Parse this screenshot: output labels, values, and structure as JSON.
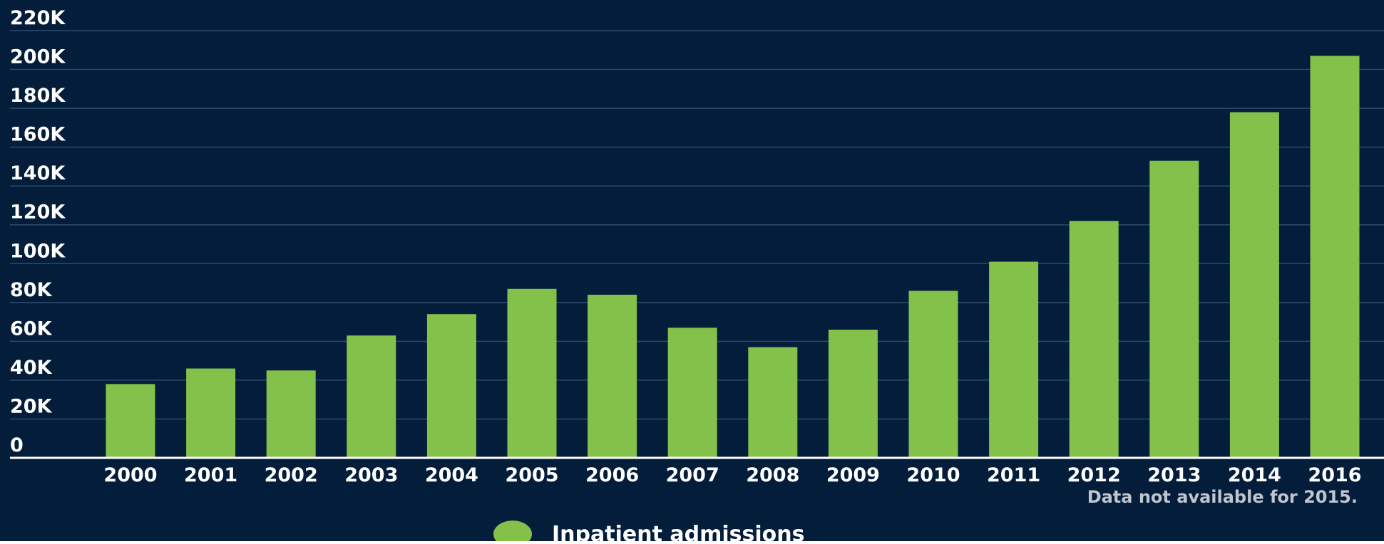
{
  "chart_data": {
    "type": "bar",
    "categories": [
      "2000",
      "2001",
      "2002",
      "2003",
      "2004",
      "2005",
      "2006",
      "2007",
      "2008",
      "2009",
      "2010",
      "2011",
      "2012",
      "2013",
      "2014",
      "2016"
    ],
    "series": [
      {
        "name": "Inpatient admissions",
        "values": [
          38000,
          46000,
          45000,
          63000,
          74000,
          87000,
          84000,
          67000,
          57000,
          66000,
          86000,
          101000,
          122000,
          153000,
          178000,
          207000
        ]
      }
    ],
    "y_ticks": [
      "0",
      "20K",
      "40K",
      "60K",
      "80K",
      "100K",
      "120K",
      "140K",
      "160K",
      "180K",
      "200K",
      "220K"
    ],
    "ylim": [
      0,
      220000
    ],
    "grid": true,
    "legend_position": "bottom-center",
    "annotation": "Data not available for 2015.",
    "colors": {
      "background": "#031d3a",
      "bar": "#84c14a",
      "grid": "#2e4a6a",
      "axis": "#ffffff"
    }
  }
}
